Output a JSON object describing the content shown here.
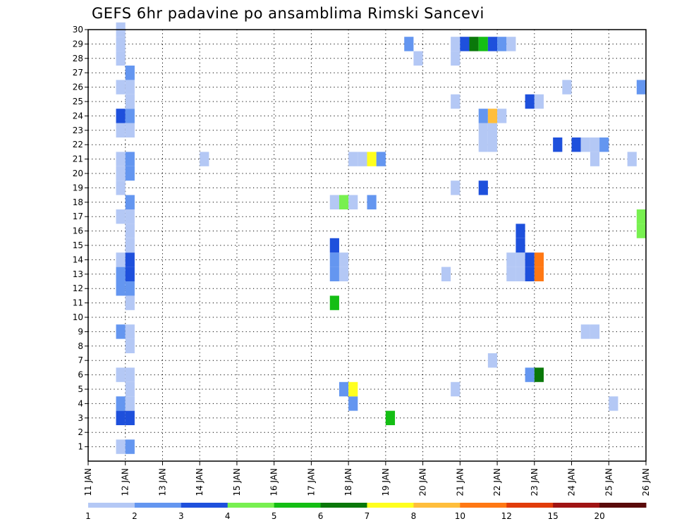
{
  "chart_data": {
    "type": "heatmap",
    "title": "GEFS 6hr padavine po ansamblima Rimski Sancevi",
    "x_ticks": [
      "11 JAN",
      "12 JAN",
      "13 JAN",
      "14 JAN",
      "15 JAN",
      "16 JAN",
      "17 JAN",
      "18 JAN",
      "19 JAN",
      "20 JAN",
      "21 JAN",
      "22 JAN",
      "23 JAN",
      "24 JAN",
      "25 JAN",
      "26 JAN"
    ],
    "x_range_hours": [
      0,
      360
    ],
    "x_step_hours": 6,
    "y_ticks": [
      1,
      2,
      3,
      4,
      5,
      6,
      7,
      8,
      9,
      10,
      11,
      12,
      13,
      14,
      15,
      16,
      17,
      18,
      19,
      20,
      21,
      22,
      23,
      24,
      25,
      26,
      27,
      28,
      29,
      30
    ],
    "y_range": [
      0,
      30
    ],
    "grid": true,
    "colorbar": {
      "tick_labels": [
        "1",
        "2",
        "3",
        "4",
        "5",
        "6",
        "7",
        "8",
        "10",
        "12",
        "15",
        "20"
      ],
      "colors": [
        "#b4c8f5",
        "#6496f0",
        "#1e50dc",
        "#78f050",
        "#14be14",
        "#0a780a",
        "#ffff1e",
        "#ffbe3c",
        "#ff7814",
        "#e13c0a",
        "#a01414",
        "#5a0a0a"
      ]
    },
    "cells": [
      {
        "m": 1,
        "h": 18,
        "v": 1.5
      },
      {
        "m": 1,
        "h": 24,
        "v": 2.5
      },
      {
        "m": 3,
        "h": 18,
        "v": 3.5
      },
      {
        "m": 3,
        "h": 24,
        "v": 3.5
      },
      {
        "m": 3,
        "h": 192,
        "v": 5.5
      },
      {
        "m": 4,
        "h": 18,
        "v": 2.5
      },
      {
        "m": 4,
        "h": 24,
        "v": 1.5
      },
      {
        "m": 4,
        "h": 168,
        "v": 2.5
      },
      {
        "m": 4,
        "h": 336,
        "v": 1.5
      },
      {
        "m": 5,
        "h": 24,
        "v": 1.5
      },
      {
        "m": 5,
        "h": 162,
        "v": 2.5
      },
      {
        "m": 5,
        "h": 168,
        "v": 7.5
      },
      {
        "m": 5,
        "h": 234,
        "v": 1.5
      },
      {
        "m": 6,
        "h": 18,
        "v": 1.5
      },
      {
        "m": 6,
        "h": 24,
        "v": 1.5
      },
      {
        "m": 6,
        "h": 282,
        "v": 2.5
      },
      {
        "m": 6,
        "h": 288,
        "v": 6.5
      },
      {
        "m": 7,
        "h": 258,
        "v": 1.5
      },
      {
        "m": 8,
        "h": 24,
        "v": 1.5
      },
      {
        "m": 9,
        "h": 18,
        "v": 2.5
      },
      {
        "m": 9,
        "h": 24,
        "v": 1.5
      },
      {
        "m": 9,
        "h": 318,
        "v": 1.5
      },
      {
        "m": 9,
        "h": 324,
        "v": 1.5
      },
      {
        "m": 11,
        "h": 24,
        "v": 1.5
      },
      {
        "m": 11,
        "h": 156,
        "v": 5.5
      },
      {
        "m": 12,
        "h": 18,
        "v": 2.5
      },
      {
        "m": 12,
        "h": 24,
        "v": 2.5
      },
      {
        "m": 13,
        "h": 18,
        "v": 2.5
      },
      {
        "m": 13,
        "h": 24,
        "v": 3.5
      },
      {
        "m": 13,
        "h": 156,
        "v": 2.5
      },
      {
        "m": 13,
        "h": 162,
        "v": 1.5
      },
      {
        "m": 13,
        "h": 228,
        "v": 1.5
      },
      {
        "m": 13,
        "h": 270,
        "v": 1.5
      },
      {
        "m": 13,
        "h": 276,
        "v": 1.5
      },
      {
        "m": 13,
        "h": 282,
        "v": 3.5
      },
      {
        "m": 13,
        "h": 288,
        "v": 11
      },
      {
        "m": 14,
        "h": 18,
        "v": 1.5
      },
      {
        "m": 14,
        "h": 24,
        "v": 3.5
      },
      {
        "m": 14,
        "h": 156,
        "v": 2.5
      },
      {
        "m": 14,
        "h": 162,
        "v": 1.5
      },
      {
        "m": 14,
        "h": 270,
        "v": 1.5
      },
      {
        "m": 14,
        "h": 276,
        "v": 1.5
      },
      {
        "m": 14,
        "h": 282,
        "v": 3.5
      },
      {
        "m": 14,
        "h": 288,
        "v": 11
      },
      {
        "m": 15,
        "h": 24,
        "v": 1.5
      },
      {
        "m": 15,
        "h": 156,
        "v": 3.5
      },
      {
        "m": 15,
        "h": 276,
        "v": 3.5
      },
      {
        "m": 16,
        "h": 24,
        "v": 1.5
      },
      {
        "m": 16,
        "h": 276,
        "v": 3.5
      },
      {
        "m": 16,
        "h": 354,
        "v": 4.5
      },
      {
        "m": 17,
        "h": 18,
        "v": 1.5
      },
      {
        "m": 17,
        "h": 24,
        "v": 1.5
      },
      {
        "m": 17,
        "h": 354,
        "v": 4.5
      },
      {
        "m": 18,
        "h": 24,
        "v": 2.5
      },
      {
        "m": 18,
        "h": 156,
        "v": 1.5
      },
      {
        "m": 18,
        "h": 162,
        "v": 4.5
      },
      {
        "m": 18,
        "h": 168,
        "v": 1.5
      },
      {
        "m": 18,
        "h": 180,
        "v": 2.5
      },
      {
        "m": 19,
        "h": 18,
        "v": 1.5
      },
      {
        "m": 19,
        "h": 234,
        "v": 1.5
      },
      {
        "m": 19,
        "h": 252,
        "v": 3.5
      },
      {
        "m": 20,
        "h": 18,
        "v": 1.5
      },
      {
        "m": 20,
        "h": 24,
        "v": 2.5
      },
      {
        "m": 21,
        "h": 18,
        "v": 1.5
      },
      {
        "m": 21,
        "h": 24,
        "v": 2.5
      },
      {
        "m": 21,
        "h": 72,
        "v": 1.5
      },
      {
        "m": 21,
        "h": 168,
        "v": 1.5
      },
      {
        "m": 21,
        "h": 174,
        "v": 1.5
      },
      {
        "m": 21,
        "h": 180,
        "v": 7.5
      },
      {
        "m": 21,
        "h": 186,
        "v": 2.5
      },
      {
        "m": 21,
        "h": 324,
        "v": 1.5
      },
      {
        "m": 21,
        "h": 348,
        "v": 1.5
      },
      {
        "m": 22,
        "h": 252,
        "v": 1.5
      },
      {
        "m": 22,
        "h": 258,
        "v": 1.5
      },
      {
        "m": 22,
        "h": 300,
        "v": 3.5
      },
      {
        "m": 22,
        "h": 312,
        "v": 3.5
      },
      {
        "m": 22,
        "h": 318,
        "v": 1.5
      },
      {
        "m": 22,
        "h": 324,
        "v": 1.5
      },
      {
        "m": 22,
        "h": 330,
        "v": 2.5
      },
      {
        "m": 23,
        "h": 18,
        "v": 1.5
      },
      {
        "m": 23,
        "h": 24,
        "v": 1.5
      },
      {
        "m": 23,
        "h": 252,
        "v": 1.5
      },
      {
        "m": 23,
        "h": 258,
        "v": 1.5
      },
      {
        "m": 24,
        "h": 18,
        "v": 3.5
      },
      {
        "m": 24,
        "h": 24,
        "v": 2.5
      },
      {
        "m": 24,
        "h": 252,
        "v": 2.5
      },
      {
        "m": 24,
        "h": 258,
        "v": 9
      },
      {
        "m": 24,
        "h": 264,
        "v": 1.5
      },
      {
        "m": 25,
        "h": 24,
        "v": 1.5
      },
      {
        "m": 25,
        "h": 234,
        "v": 1.5
      },
      {
        "m": 25,
        "h": 282,
        "v": 3.5
      },
      {
        "m": 25,
        "h": 288,
        "v": 1.5
      },
      {
        "m": 26,
        "h": 18,
        "v": 1.5
      },
      {
        "m": 26,
        "h": 24,
        "v": 1.5
      },
      {
        "m": 26,
        "h": 306,
        "v": 1.5
      },
      {
        "m": 26,
        "h": 354,
        "v": 2.5
      },
      {
        "m": 27,
        "h": 24,
        "v": 2.5
      },
      {
        "m": 28,
        "h": 18,
        "v": 1.5
      },
      {
        "m": 28,
        "h": 210,
        "v": 1.5
      },
      {
        "m": 28,
        "h": 234,
        "v": 1.5
      },
      {
        "m": 29,
        "h": 18,
        "v": 1.5
      },
      {
        "m": 29,
        "h": 204,
        "v": 2.5
      },
      {
        "m": 29,
        "h": 234,
        "v": 1.5
      },
      {
        "m": 29,
        "h": 240,
        "v": 3.5
      },
      {
        "m": 29,
        "h": 246,
        "v": 6.5
      },
      {
        "m": 29,
        "h": 252,
        "v": 5.5
      },
      {
        "m": 29,
        "h": 258,
        "v": 3.5
      },
      {
        "m": 29,
        "h": 264,
        "v": 2.5
      },
      {
        "m": 29,
        "h": 270,
        "v": 1.5
      },
      {
        "m": 30,
        "h": 18,
        "v": 1.5
      }
    ]
  }
}
